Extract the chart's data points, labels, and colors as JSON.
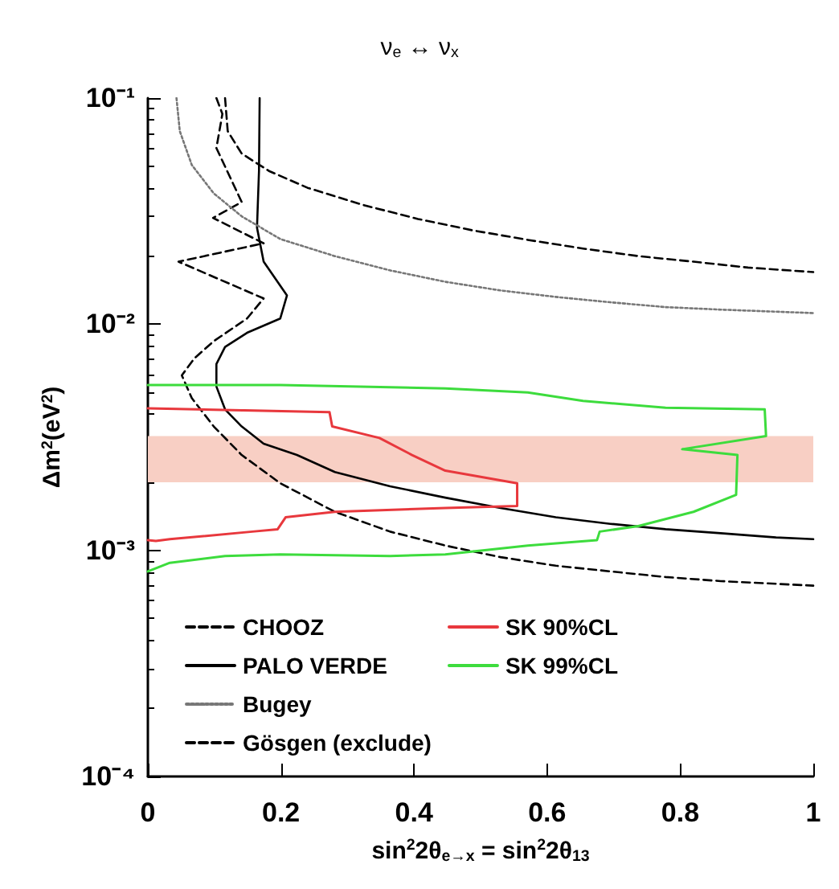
{
  "chart_data": {
    "type": "line",
    "title": "ν$_{e}$ ↔ ν$_{x}$",
    "xlabel": "sin$^{2}$2θ$_{e→x}$ = sin$^{2}$2θ$_{13}$",
    "ylabel": "Δm$^{2}$(eV$^{2}$)",
    "xlim": [
      0,
      1
    ],
    "xticks": [
      0,
      0.2,
      0.4,
      0.6,
      0.8,
      1
    ],
    "ylim": [
      0.0001,
      0.1
    ],
    "log": "y",
    "yticks": [
      {
        "value": 0.0001,
        "label": "10⁻⁴"
      },
      {
        "value": 0.001,
        "label": "10⁻³"
      },
      {
        "value": 0.01,
        "label": "10⁻²"
      },
      {
        "value": 0.1,
        "label": "10⁻¹"
      }
    ],
    "grid": false,
    "legend": "bottom",
    "marker": "none",
    "bands": [
      {
        "axis": "y",
        "from": 0.002,
        "to": 0.0032,
        "color": "#f8cfc4"
      }
    ],
    "series": [
      {
        "name": "CHOOZ",
        "color": "#000000",
        "line_style": "dashed",
        "x": [
          0.103,
          0.112,
          0.103,
          0.141,
          0.098,
          0.174,
          0.046,
          0.174,
          0.149,
          0.099,
          0.07,
          0.051,
          0.066,
          0.099,
          0.141,
          0.199,
          0.281,
          0.364,
          0.447,
          0.53,
          0.613,
          0.695,
          0.778,
          0.861,
          1
        ],
        "values": [
          0.1,
          0.0851,
          0.0601,
          0.0347,
          0.0295,
          0.0228,
          0.0189,
          0.013,
          0.0106,
          0.00841,
          0.00707,
          0.00594,
          0.00471,
          0.00353,
          0.00264,
          0.00198,
          0.00148,
          0.00121,
          0.00105,
          0.000933,
          0.000855,
          0.000807,
          0.000762,
          0.000731,
          0.000698
        ]
      },
      {
        "name": "PALO VERDE",
        "color": "#000000",
        "line_style": "solid",
        "x": [
          0.168,
          0.167,
          0.164,
          0.174,
          0.209,
          0.199,
          0.149,
          0.116,
          0.103,
          0.103,
          0.116,
          0.141,
          0.174,
          0.224,
          0.281,
          0.364,
          0.447,
          0.53,
          0.613,
          0.695,
          0.778,
          0.861,
          0.944,
          1
        ],
        "values": [
          0.1,
          0.0476,
          0.0267,
          0.0189,
          0.0134,
          0.0106,
          0.00916,
          0.00793,
          0.00667,
          0.0053,
          0.0042,
          0.00353,
          0.00296,
          0.00264,
          0.00222,
          0.00192,
          0.00171,
          0.00154,
          0.0014,
          0.00131,
          0.00124,
          0.00119,
          0.00114,
          0.00112
        ]
      },
      {
        "name": "Bugey",
        "color": "#777777",
        "line_style": "dotted",
        "x": [
          0.043,
          0.048,
          0.066,
          0.099,
          0.141,
          0.199,
          0.281,
          0.364,
          0.447,
          0.53,
          0.613,
          0.695,
          0.778,
          0.861,
          1
        ],
        "values": [
          0.1,
          0.0714,
          0.0506,
          0.0379,
          0.03,
          0.0238,
          0.02,
          0.0173,
          0.0154,
          0.0141,
          0.0132,
          0.0125,
          0.0119,
          0.0116,
          0.0112
        ]
      },
      {
        "name": "Gösgen (exclude)",
        "color": "#000000",
        "line_style": "dashed",
        "x": [
          0.116,
          0.12,
          0.141,
          0.182,
          0.24,
          0.323,
          0.406,
          0.488,
          0.571,
          0.654,
          0.737,
          0.82,
          0.902,
          1
        ],
        "values": [
          0.1,
          0.0714,
          0.0568,
          0.0476,
          0.0401,
          0.0337,
          0.0292,
          0.026,
          0.0236,
          0.0216,
          0.02,
          0.0189,
          0.0178,
          0.017
        ]
      },
      {
        "name": "SK 90%CL",
        "color": "#e8383d",
        "line_style": "solid",
        "x": [
          0,
          0.273,
          0.277,
          0.348,
          0.397,
          0.447,
          0.555,
          0.555,
          0.447,
          0.281,
          0.207,
          0.195,
          0.157,
          0.033,
          0.012,
          0
        ],
        "values": [
          0.00425,
          0.00408,
          0.00353,
          0.00314,
          0.00264,
          0.00225,
          0.00198,
          0.00157,
          0.00154,
          0.00148,
          0.0014,
          0.00124,
          0.00121,
          0.00112,
          0.0011,
          0.00111
        ]
      },
      {
        "name": "SK 99%CL",
        "color": "#3ddc3d",
        "line_style": "solid",
        "x": [
          0,
          0.199,
          0.447,
          0.571,
          0.654,
          0.778,
          0.927,
          0.929,
          0.803,
          0.886,
          0.884,
          0.82,
          0.737,
          0.679,
          0.675,
          0.571,
          0.447,
          0.364,
          0.199,
          0.116,
          0.033,
          0
        ],
        "values": [
          0.00538,
          0.00538,
          0.0052,
          0.00499,
          0.00458,
          0.00427,
          0.0042,
          0.0032,
          0.0028,
          0.00264,
          0.00176,
          0.00148,
          0.00128,
          0.00121,
          0.00111,
          0.00105,
          0.00096,
          0.000944,
          0.00096,
          0.000944,
          0.000881,
          0.000807
        ]
      }
    ]
  }
}
